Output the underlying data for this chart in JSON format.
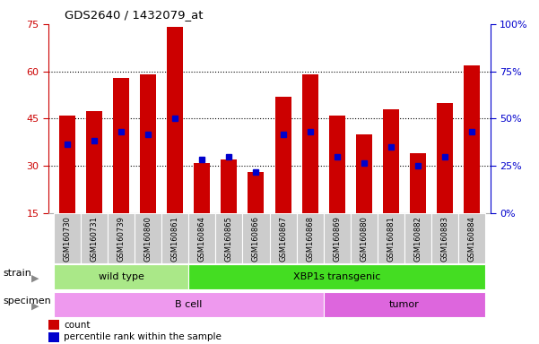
{
  "title": "GDS2640 / 1432079_at",
  "samples": [
    "GSM160730",
    "GSM160731",
    "GSM160739",
    "GSM160860",
    "GSM160861",
    "GSM160864",
    "GSM160865",
    "GSM160866",
    "GSM160867",
    "GSM160868",
    "GSM160869",
    "GSM160880",
    "GSM160881",
    "GSM160882",
    "GSM160883",
    "GSM160884"
  ],
  "count_values": [
    46,
    47.5,
    58,
    59,
    74,
    31,
    32,
    28,
    52,
    59,
    46,
    40,
    48,
    34,
    50,
    62
  ],
  "percentile_values": [
    37,
    38,
    41,
    40,
    45,
    32,
    33,
    28,
    40,
    41,
    33,
    31,
    36,
    30,
    33,
    41
  ],
  "ymin": 15,
  "ymax": 75,
  "yticks": [
    15,
    30,
    45,
    60,
    75
  ],
  "y2ticks": [
    0,
    25,
    50,
    75,
    100
  ],
  "bar_color": "#cc0000",
  "percentile_color": "#0000cc",
  "strain_groups": [
    {
      "label": "wild type",
      "start": 0,
      "end": 5,
      "color": "#aae888"
    },
    {
      "label": "XBP1s transgenic",
      "start": 5,
      "end": 16,
      "color": "#44dd22"
    }
  ],
  "specimen_groups": [
    {
      "label": "B cell",
      "start": 0,
      "end": 10,
      "color": "#ee99ee"
    },
    {
      "label": "tumor",
      "start": 10,
      "end": 16,
      "color": "#dd66dd"
    }
  ],
  "strain_label": "strain",
  "specimen_label": "specimen",
  "legend_count": "count",
  "legend_percentile": "percentile rank within the sample",
  "bg_color": "#ffffff",
  "axis_color_left": "#cc0000",
  "axis_color_right": "#0000cc",
  "grid_color": "#000000",
  "tick_bg_color": "#cccccc",
  "bar_width": 0.6
}
